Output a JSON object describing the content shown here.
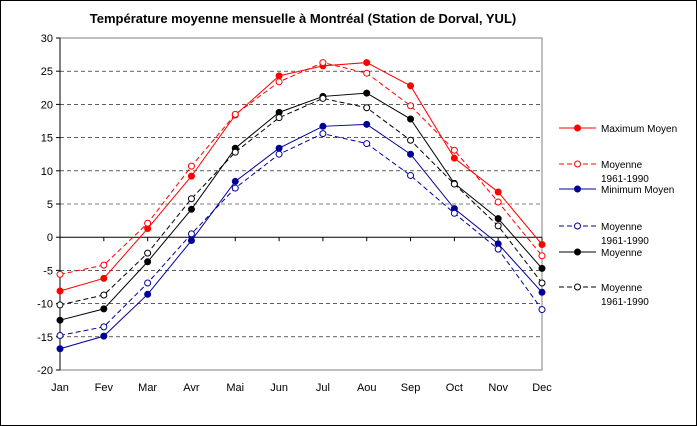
{
  "chart_data": {
    "type": "line",
    "title": "Température moyenne mensuelle à Montréal (Station de Dorval, YUL)",
    "xlabel": "",
    "ylabel": "",
    "categories": [
      "Jan",
      "Fev",
      "Mar",
      "Avr",
      "Mai",
      "Jun",
      "Jul",
      "Aou",
      "Sep",
      "Oct",
      "Nov",
      "Dec"
    ],
    "ylim": [
      -20,
      30
    ],
    "yticks": [
      "-20",
      "-15",
      "-10",
      "-5",
      "0",
      "5",
      "10",
      "15",
      "20",
      "25",
      "30"
    ],
    "grid": "horizontal dashed",
    "legend_position": "right",
    "series": [
      {
        "name": "Maximum Moyen",
        "color": "#ff0000",
        "style": "solid",
        "marker": "filled-circle",
        "values": [
          -8.1,
          -6.2,
          1.3,
          9.2,
          18.4,
          24.3,
          25.8,
          26.3,
          22.8,
          11.9,
          6.8,
          -1.1
        ]
      },
      {
        "name": "Moyenne\n1961-1990",
        "color": "#ff0000",
        "style": "dashed",
        "marker": "open-circle",
        "values": [
          -5.6,
          -4.2,
          2.1,
          10.7,
          18.5,
          23.4,
          26.3,
          24.7,
          19.8,
          13.1,
          5.3,
          -2.8
        ]
      },
      {
        "name": "Minimum Moyen",
        "color": "#000099",
        "style": "solid",
        "marker": "filled-circle",
        "values": [
          -16.8,
          -14.9,
          -8.6,
          -0.5,
          8.4,
          13.4,
          16.7,
          17.0,
          12.5,
          4.3,
          -1.0,
          -8.3
        ]
      },
      {
        "name": "Moyenne\n1961-1990",
        "color": "#000099",
        "style": "dashed",
        "marker": "open-circle",
        "values": [
          -14.8,
          -13.5,
          -6.9,
          0.5,
          7.4,
          12.5,
          15.6,
          14.1,
          9.3,
          3.6,
          -1.8,
          -10.9
        ]
      },
      {
        "name": "Moyenne",
        "color": "#000000",
        "style": "solid",
        "marker": "filled-circle",
        "values": [
          -12.5,
          -10.8,
          -3.7,
          4.2,
          13.4,
          18.8,
          21.2,
          21.7,
          17.8,
          8.1,
          2.8,
          -4.7
        ]
      },
      {
        "name": "Moyenne\n1961-1990",
        "color": "#000000",
        "style": "dashed",
        "marker": "open-circle",
        "values": [
          -10.2,
          -8.7,
          -2.4,
          5.8,
          12.8,
          18.0,
          20.9,
          19.5,
          14.6,
          8.0,
          1.7,
          -6.9
        ]
      }
    ]
  }
}
